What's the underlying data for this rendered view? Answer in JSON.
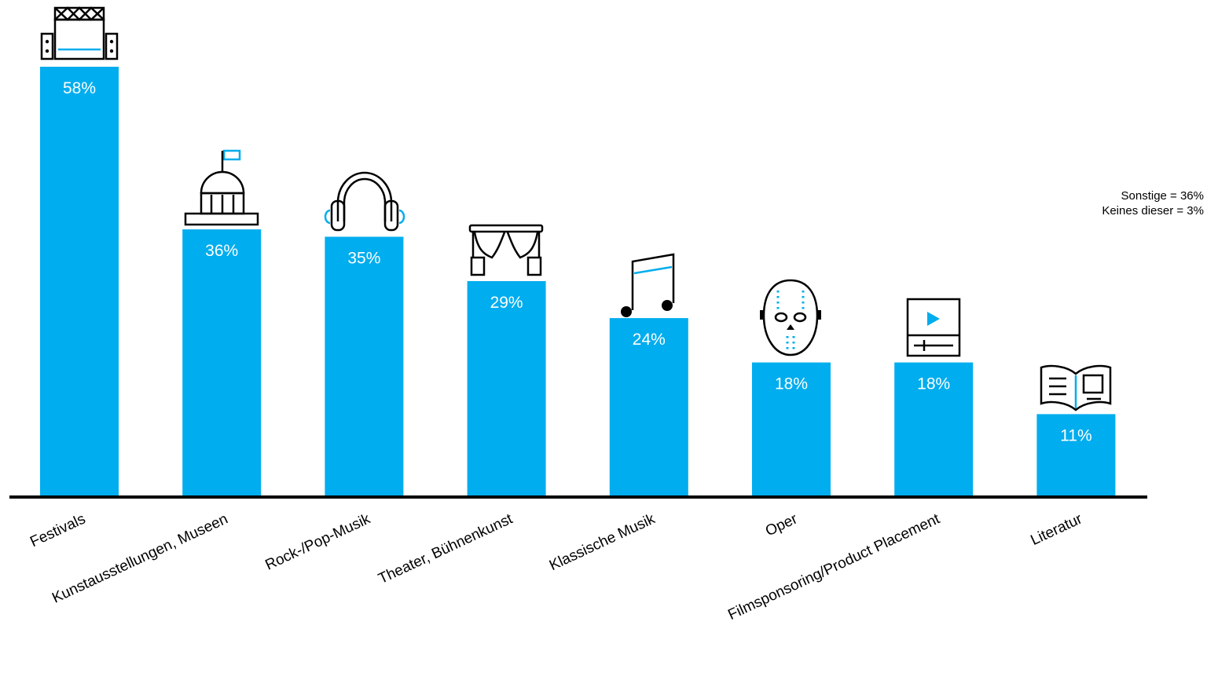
{
  "chart_data": {
    "type": "bar",
    "categories": [
      "Festivals",
      "Kunstausstellungen, Museen",
      "Rock-/Pop-Musik",
      "Theater, Bühnenkunst",
      "Klassische Musik",
      "Oper",
      "Filmsponsoring/Product Placement",
      "Literatur"
    ],
    "values": [
      58,
      36,
      35,
      29,
      24,
      18,
      18,
      11
    ],
    "value_labels": [
      "58%",
      "36%",
      "35%",
      "29%",
      "24%",
      "18%",
      "18%",
      "11%"
    ],
    "unit": "%",
    "ylim": [
      0,
      58
    ],
    "grid": false,
    "legend": "none",
    "bar_color": "#00adee",
    "axis_color": "#000000",
    "icons": [
      "festival-stage-icon",
      "museum-icon",
      "headphones-icon",
      "theater-curtain-icon",
      "music-note-icon",
      "opera-mask-icon",
      "video-player-icon",
      "open-book-icon"
    ]
  },
  "annotations": {
    "line1": "Sonstige = 36%",
    "line2": "Keines dieser = 3%"
  }
}
